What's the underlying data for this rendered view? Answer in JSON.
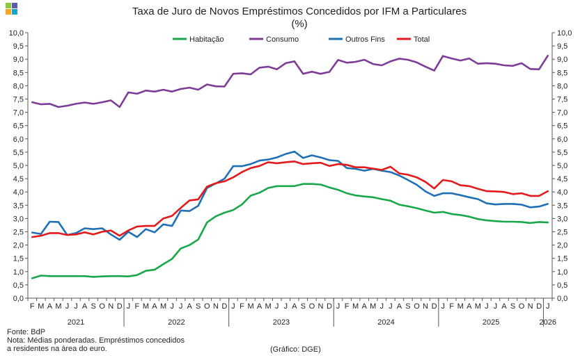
{
  "chart_data": {
    "type": "line",
    "title": "Taxa de Juro de Novos Empréstimos Concedidos por IFM a Particulares",
    "subtitle": "(%)",
    "ylim": [
      0,
      10
    ],
    "y_ticks": [
      "0,0",
      "0,5",
      "1,0",
      "1,5",
      "2,0",
      "2,5",
      "3,0",
      "3,5",
      "4,0",
      "4,5",
      "5,0",
      "5,5",
      "6,0",
      "6,5",
      "7,0",
      "7,5",
      "8,0",
      "8,5",
      "9,0",
      "9,5",
      "10,0"
    ],
    "grid": false,
    "legend_position": "top",
    "month_labels": [
      "F",
      "M",
      "A",
      "M",
      "J",
      "J",
      "A",
      "S",
      "O",
      "N",
      "D",
      "J",
      "F",
      "M",
      "A",
      "M",
      "J",
      "J",
      "A",
      "S",
      "O",
      "N",
      "D",
      "J",
      "F",
      "M",
      "A",
      "M",
      "J",
      "J",
      "A",
      "S",
      "O",
      "N",
      "D",
      "J",
      "F",
      "M",
      "A",
      "M",
      "J",
      "J",
      "A",
      "S",
      "O",
      "N",
      "D",
      "J",
      "F",
      "M",
      "A",
      "M",
      "J",
      "J",
      "A",
      "S",
      "O",
      "N",
      "D",
      "J"
    ],
    "years": [
      {
        "label": "2021",
        "start": 0,
        "end": 11
      },
      {
        "label": "2022",
        "start": 11,
        "end": 23
      },
      {
        "label": "2023",
        "start": 23,
        "end": 35
      },
      {
        "label": "2024",
        "start": 35,
        "end": 47
      },
      {
        "label": "2025",
        "start": 47,
        "end": 59
      },
      {
        "label": "2026",
        "start": 59,
        "end": 60
      }
    ],
    "series": [
      {
        "name": "Habitação",
        "color": "#1aa64b",
        "values": [
          0.75,
          0.85,
          0.83,
          0.83,
          0.83,
          0.83,
          0.83,
          0.8,
          0.82,
          0.83,
          0.83,
          0.82,
          0.87,
          1.03,
          1.07,
          1.28,
          1.48,
          1.87,
          2.0,
          2.21,
          2.85,
          3.08,
          3.22,
          3.32,
          3.53,
          3.86,
          3.97,
          4.15,
          4.22,
          4.22,
          4.22,
          4.3,
          4.3,
          4.28,
          4.17,
          4.08,
          3.95,
          3.87,
          3.83,
          3.8,
          3.73,
          3.67,
          3.52,
          3.46,
          3.39,
          3.3,
          3.22,
          3.25,
          3.17,
          3.13,
          3.07,
          2.98,
          2.93,
          2.9,
          2.88,
          2.88,
          2.87,
          2.83,
          2.87,
          2.85
        ]
      },
      {
        "name": "Consumo",
        "color": "#7d3c98",
        "values": [
          7.38,
          7.3,
          7.32,
          7.2,
          7.25,
          7.32,
          7.37,
          7.32,
          7.38,
          7.45,
          7.2,
          7.75,
          7.7,
          7.82,
          7.78,
          7.85,
          7.78,
          7.88,
          7.93,
          7.85,
          8.05,
          7.98,
          7.97,
          8.45,
          8.47,
          8.43,
          8.68,
          8.72,
          8.62,
          8.85,
          8.92,
          8.45,
          8.53,
          8.45,
          8.52,
          8.97,
          8.87,
          8.9,
          8.98,
          8.82,
          8.77,
          8.92,
          9.02,
          8.98,
          8.88,
          8.72,
          8.57,
          9.12,
          9.03,
          8.95,
          9.03,
          8.83,
          8.85,
          8.83,
          8.77,
          8.75,
          8.85,
          8.63,
          8.62,
          9.13
        ]
      },
      {
        "name": "Outros Fins",
        "color": "#1f6fb4",
        "values": [
          2.47,
          2.42,
          2.88,
          2.87,
          2.38,
          2.45,
          2.63,
          2.6,
          2.63,
          2.4,
          2.2,
          2.5,
          2.3,
          2.6,
          2.48,
          2.78,
          2.72,
          3.3,
          3.28,
          3.48,
          4.15,
          4.32,
          4.5,
          4.97,
          4.97,
          5.05,
          5.18,
          5.22,
          5.3,
          5.43,
          5.52,
          5.28,
          5.38,
          5.3,
          5.2,
          5.17,
          4.9,
          4.87,
          4.8,
          4.87,
          4.8,
          4.75,
          4.62,
          4.45,
          4.27,
          4.02,
          3.85,
          3.95,
          3.95,
          3.88,
          3.8,
          3.73,
          3.57,
          3.53,
          3.55,
          3.55,
          3.52,
          3.42,
          3.45,
          3.55
        ]
      },
      {
        "name": "Total",
        "color": "#e31a1c",
        "values": [
          2.3,
          2.35,
          2.45,
          2.45,
          2.38,
          2.4,
          2.48,
          2.4,
          2.5,
          2.55,
          2.35,
          2.55,
          2.7,
          2.72,
          2.72,
          3.0,
          3.1,
          3.4,
          3.68,
          3.72,
          4.2,
          4.33,
          4.4,
          4.55,
          4.75,
          4.9,
          4.98,
          5.12,
          5.08,
          5.12,
          5.15,
          5.05,
          5.08,
          5.1,
          4.98,
          5.05,
          5.02,
          4.93,
          4.93,
          4.88,
          4.83,
          4.95,
          4.7,
          4.65,
          4.55,
          4.38,
          4.13,
          4.45,
          4.4,
          4.25,
          4.22,
          4.12,
          4.03,
          4.02,
          4.0,
          3.92,
          3.95,
          3.85,
          3.85,
          4.03
        ]
      }
    ]
  },
  "notes": {
    "source": "Fonte: BdP",
    "note_line1": "Nota: Médias ponderadas. Empréstimos concedidos",
    "note_line2": "a residentes na área do euro.",
    "credit": "(Gráfico: DGE)"
  },
  "logo_colors": [
    "#8dc63f",
    "#5b5ea6",
    "#f5a623",
    "#1aa3c8"
  ]
}
